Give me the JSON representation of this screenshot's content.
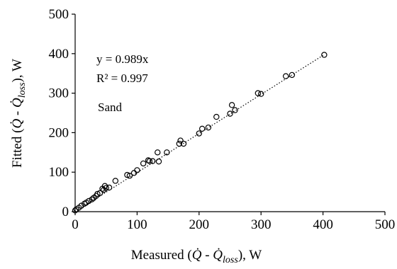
{
  "chart_data": {
    "type": "scatter",
    "xlabel_parts": [
      "Measured (",
      "Q̇",
      " - ",
      "Q̇",
      "loss",
      "), W"
    ],
    "ylabel_parts": [
      "Fitted (",
      "Q̇",
      " - ",
      "Q̇",
      "loss",
      "), W"
    ],
    "xlim": [
      0,
      500
    ],
    "ylim": [
      0,
      500
    ],
    "xticks": [
      0,
      100,
      200,
      300,
      400,
      500
    ],
    "yticks": [
      0,
      100,
      200,
      300,
      400,
      500
    ],
    "xtick_labels": [
      "0",
      "100",
      "200",
      "300",
      "400",
      "500"
    ],
    "ytick_labels": [
      "0",
      "100",
      "200",
      "300",
      "400",
      "500"
    ],
    "grid": false,
    "trendline": {
      "slope": 0.989,
      "x_range": [
        0,
        402
      ],
      "style": "dotted"
    },
    "annotations": {
      "equation": "y = 0.989x",
      "r_squared": "R² = 0.997",
      "material": "Sand"
    },
    "x": [
      0,
      2,
      6,
      10,
      15,
      18,
      22,
      27,
      30,
      34,
      36,
      40,
      44,
      46,
      48,
      50,
      55,
      65,
      84,
      88,
      95,
      100,
      110,
      118,
      120,
      125,
      133,
      135,
      148,
      168,
      170,
      175,
      200,
      205,
      215,
      228,
      250,
      253,
      258,
      295,
      300,
      340,
      350,
      402
    ],
    "y": [
      3,
      6,
      10,
      15,
      20,
      23,
      27,
      31,
      35,
      40,
      45,
      47,
      58,
      55,
      65,
      60,
      61,
      78,
      93,
      91,
      98,
      105,
      122,
      130,
      128,
      128,
      150,
      127,
      150,
      172,
      180,
      172,
      198,
      210,
      213,
      240,
      248,
      270,
      257,
      300,
      298,
      343,
      346,
      397
    ]
  }
}
